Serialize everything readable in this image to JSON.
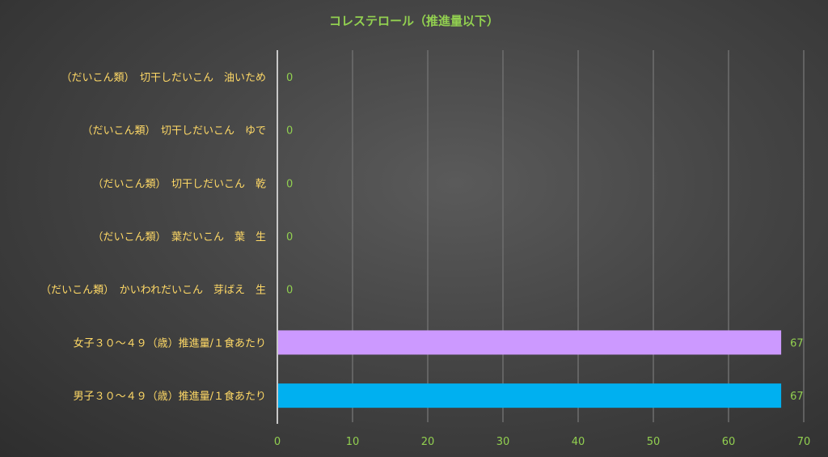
{
  "chart_data": {
    "type": "bar",
    "orientation": "horizontal",
    "title": "コレステロール（推進量以下）",
    "categories": [
      "（だいこん類）　切干しだいこん　油いため",
      "（だいこん類）　切干しだいこん　ゆで",
      "（だいこん類）　切干しだいこん　乾",
      "（だいこん類）　葉だいこん　葉　生",
      "（だいこん類）　かいわれだいこん　芽ばえ　生",
      "女子３０～４９（歳）推進量/１食あたり",
      "男子３０～４９（歳）推進量/１食あたり"
    ],
    "values": [
      0,
      0,
      0,
      0,
      0,
      67,
      67
    ],
    "bar_colors": [
      "#cc99ff",
      "#cc99ff",
      "#cc99ff",
      "#cc99ff",
      "#cc99ff",
      "#cc99ff",
      "#00b0f0"
    ],
    "xlim": [
      0,
      70
    ],
    "xticks": [
      0,
      10,
      20,
      30,
      40,
      50,
      60,
      70
    ],
    "xlabel": "",
    "ylabel": "",
    "grid": true,
    "legend": "none"
  },
  "colors": {
    "title": "#92d050",
    "category_text": "#ffd966",
    "value_text": "#92d050",
    "tick_text": "#92d050",
    "gridline": "#6e6e6e",
    "axis": "#c8c8c8"
  }
}
